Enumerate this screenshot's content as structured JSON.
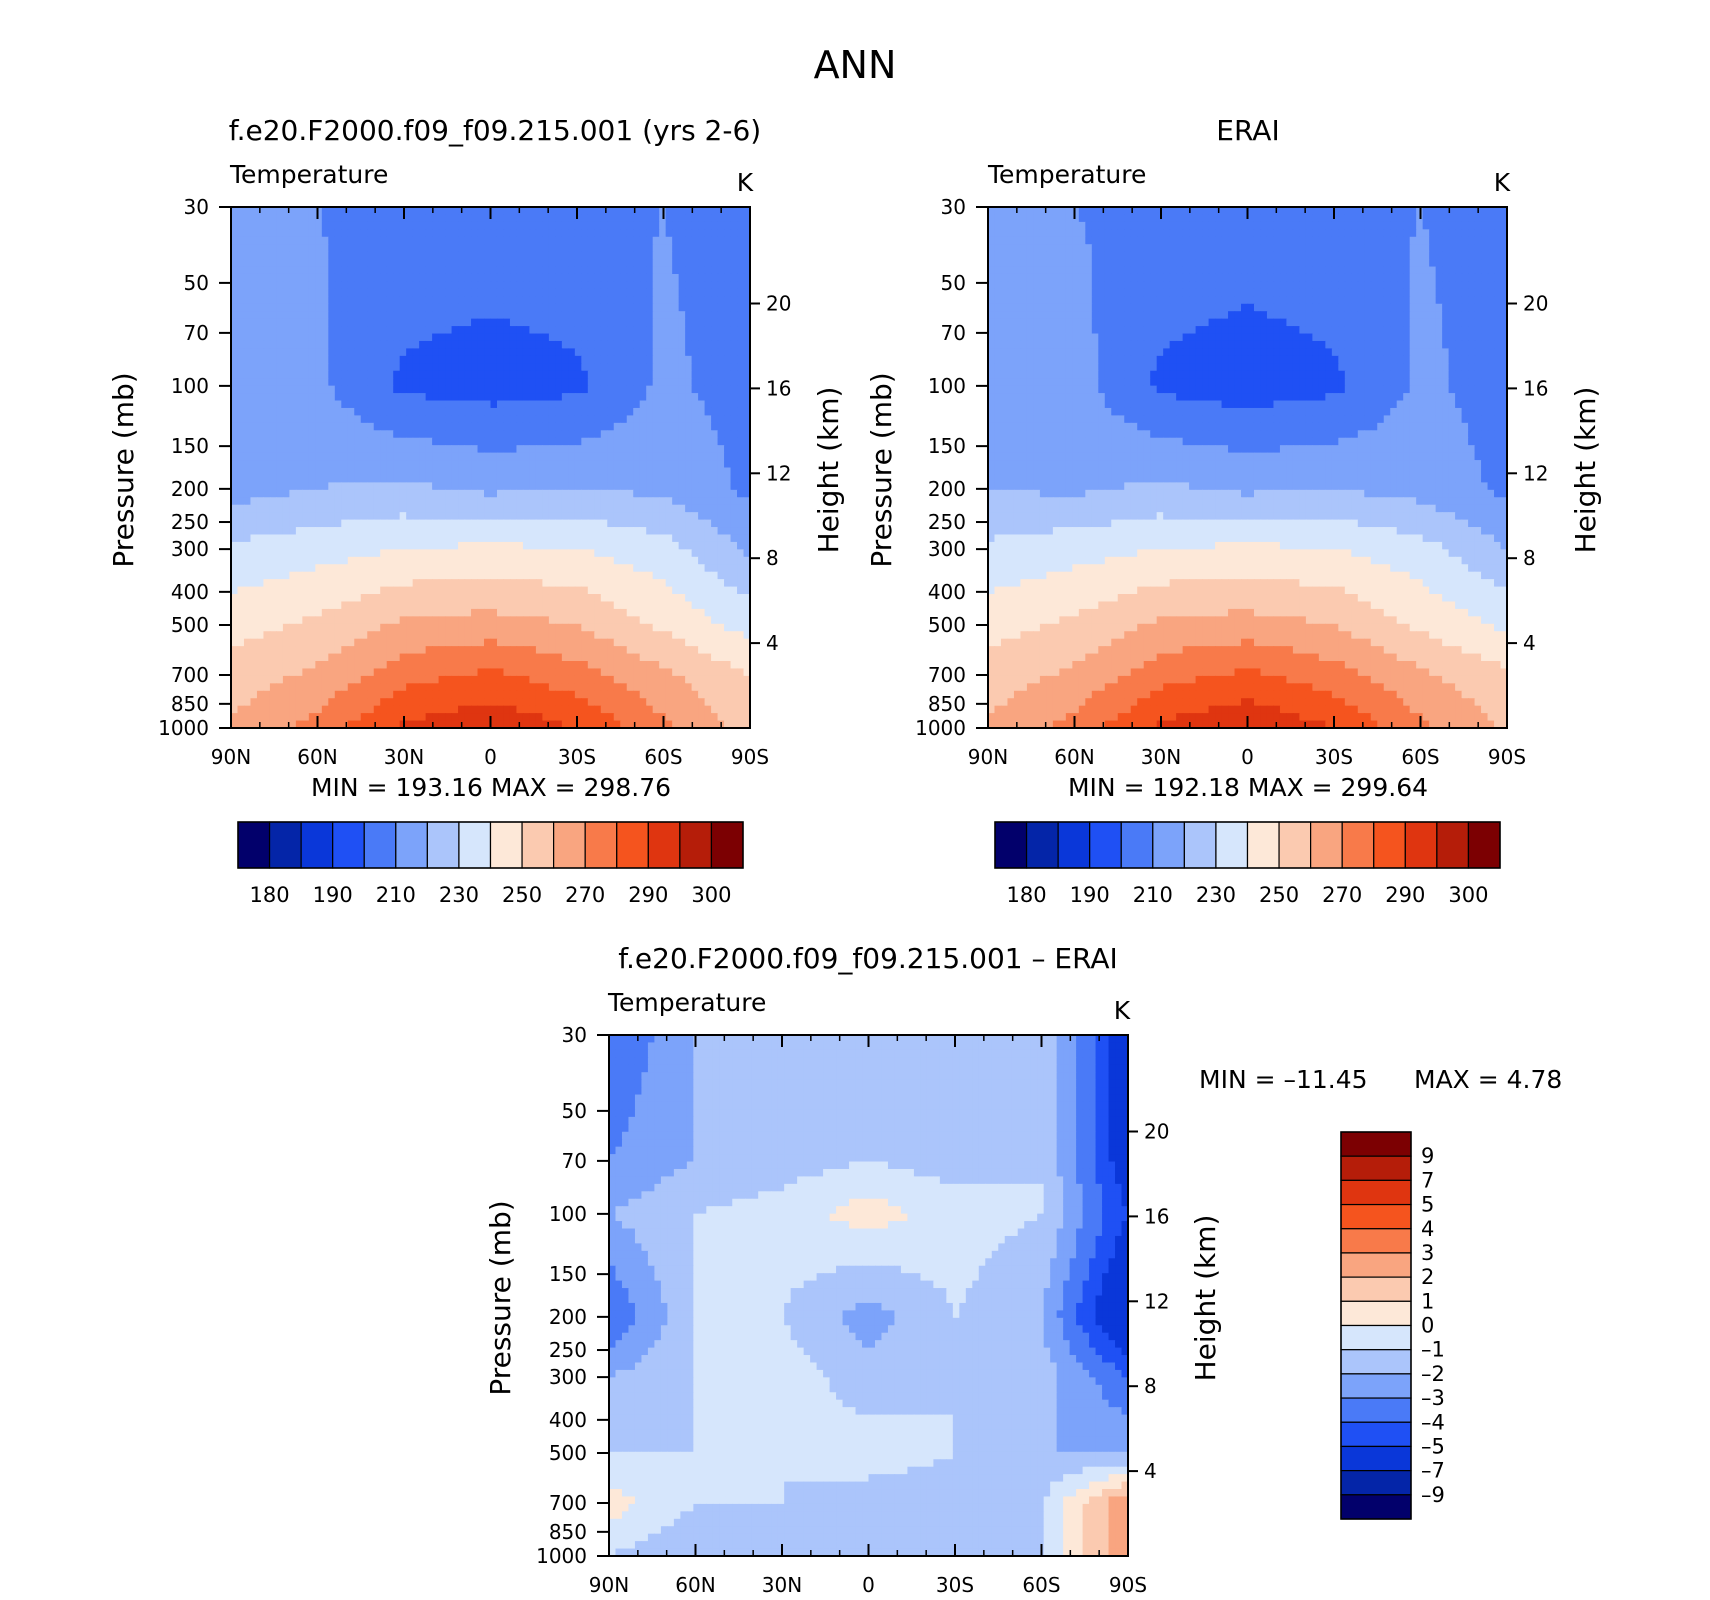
{
  "figure": {
    "title": "ANN",
    "colors": {
      "abs_scale": [
        "#02006b",
        "#0425a8",
        "#0a37d9",
        "#1f50f4",
        "#4a7af7",
        "#7ca3fa",
        "#abc5fb",
        "#d6e6fc",
        "#fde8d8",
        "#fbcab0",
        "#f9a580",
        "#f87a4a",
        "#f5541e",
        "#df3510",
        "#b51d09",
        "#7c0002"
      ],
      "diff_scale": [
        "#02006b",
        "#0425a8",
        "#0a37d9",
        "#1f50f4",
        "#4a7af7",
        "#7ca3fa",
        "#abc5fb",
        "#d6e6fc",
        "#fde8d8",
        "#fbcab0",
        "#f9a580",
        "#f87a4a",
        "#f5541e",
        "#df3510",
        "#b51d09",
        "#7c0002"
      ]
    }
  },
  "chart_data": [
    {
      "type": "heatmap",
      "panel": "model",
      "title": "f.e20.F2000.f09_f09.215.001 (yrs 2-6)",
      "left_label": "Temperature",
      "unit": "K",
      "ylabel": "Pressure (mb)",
      "y2label": "Height (km)",
      "x_ticks": [
        "90N",
        "60N",
        "30N",
        "0",
        "30S",
        "60S",
        "90S"
      ],
      "y_ticks": [
        30,
        50,
        70,
        100,
        150,
        200,
        250,
        300,
        400,
        500,
        700,
        850,
        1000
      ],
      "y2_ticks": [
        20,
        16,
        12,
        8,
        4
      ],
      "min": "193.16",
      "max": "298.76",
      "stats": "MIN = 193.16 MAX = 298.76",
      "colorbar_levels": [
        180,
        185,
        190,
        200,
        210,
        220,
        230,
        240,
        250,
        260,
        270,
        280,
        290,
        300,
        310
      ],
      "colorbar_labels": [
        "180",
        "190",
        "210",
        "230",
        "250",
        "270",
        "290",
        "300"
      ],
      "field": {
        "lat": [
          90,
          60,
          30,
          0,
          -30,
          -60,
          -90
        ],
        "pressure": [
          30,
          100,
          200,
          300,
          500,
          700,
          1000
        ],
        "values": [
          [
            212,
            210,
            208,
            206,
            208,
            210,
            205
          ],
          [
            214,
            212,
            198,
            196,
            198,
            212,
            206
          ],
          [
            216,
            220,
            222,
            218,
            220,
            218,
            208
          ],
          [
            232,
            236,
            240,
            242,
            240,
            234,
            218
          ],
          [
            246,
            252,
            262,
            264,
            260,
            248,
            236
          ],
          [
            254,
            262,
            276,
            282,
            274,
            262,
            250
          ],
          [
            262,
            274,
            292,
            298,
            290,
            272,
            256
          ]
        ]
      }
    },
    {
      "type": "heatmap",
      "panel": "obs",
      "title": "ERAI",
      "left_label": "Temperature",
      "unit": "K",
      "ylabel": "Pressure (mb)",
      "y2label": "Height (km)",
      "x_ticks": [
        "90N",
        "60N",
        "30N",
        "0",
        "30S",
        "60S",
        "90S"
      ],
      "y_ticks": [
        30,
        50,
        70,
        100,
        150,
        200,
        250,
        300,
        400,
        500,
        700,
        850,
        1000
      ],
      "y2_ticks": [
        20,
        16,
        12,
        8,
        4
      ],
      "min": "192.18",
      "max": "299.64",
      "stats": "MIN = 192.18 MAX = 299.64",
      "colorbar_levels": [
        180,
        185,
        190,
        200,
        210,
        220,
        230,
        240,
        250,
        260,
        270,
        280,
        290,
        300,
        310
      ],
      "colorbar_labels": [
        "180",
        "190",
        "210",
        "230",
        "250",
        "270",
        "290",
        "300"
      ],
      "field": {
        "lat": [
          90,
          60,
          30,
          0,
          -30,
          -60,
          -90
        ],
        "pressure": [
          30,
          100,
          200,
          300,
          500,
          700,
          1000
        ],
        "values": [
          [
            212,
            210,
            208,
            206,
            208,
            210,
            206
          ],
          [
            216,
            214,
            198,
            195,
            198,
            212,
            206
          ],
          [
            220,
            218,
            222,
            218,
            220,
            216,
            208
          ],
          [
            232,
            236,
            240,
            242,
            240,
            234,
            220
          ],
          [
            246,
            252,
            262,
            264,
            260,
            248,
            238
          ],
          [
            254,
            262,
            276,
            282,
            274,
            262,
            252
          ],
          [
            262,
            274,
            292,
            299,
            290,
            272,
            258
          ]
        ]
      }
    },
    {
      "type": "heatmap",
      "panel": "difference",
      "title": "f.e20.F2000.f09_f09.215.001 – ERAI",
      "left_label": "Temperature",
      "unit": "K",
      "ylabel": "Pressure (mb)",
      "y2label": "Height (km)",
      "x_ticks": [
        "90N",
        "60N",
        "30N",
        "0",
        "30S",
        "60S",
        "90S"
      ],
      "y_ticks": [
        30,
        50,
        70,
        100,
        150,
        200,
        250,
        300,
        400,
        500,
        700,
        850,
        1000
      ],
      "y2_ticks": [
        20,
        16,
        12,
        8,
        4
      ],
      "min": "–11.45",
      "max": "4.78",
      "stats_min_label": "MIN = –11.45",
      "stats_max_label": "MAX = 4.78",
      "colorbar_levels": [
        -9,
        -7,
        -5,
        -4,
        -3,
        -2,
        -1,
        0,
        1,
        2,
        3,
        4,
        5,
        7,
        9
      ],
      "colorbar_labels": [
        "9",
        "7",
        "5",
        "4",
        "3",
        "2",
        "1",
        "0",
        "–1",
        "–2",
        "–3",
        "–4",
        "–5",
        "–7",
        "–9"
      ],
      "field": {
        "lat": [
          90,
          60,
          30,
          0,
          -30,
          -60,
          -90
        ],
        "pressure": [
          30,
          70,
          100,
          200,
          300,
          500,
          700,
          1000
        ],
        "values": [
          [
            -4,
            -2,
            -2,
            -1.5,
            -2,
            -1,
            -6
          ],
          [
            -3,
            -2,
            -1.5,
            -1,
            -1.5,
            -1,
            -6
          ],
          [
            -2,
            -1,
            -0.5,
            0.5,
            -0.5,
            -1,
            -5
          ],
          [
            -4,
            -1,
            -1,
            -2.5,
            -1,
            -2,
            -7
          ],
          [
            -2,
            -1,
            -0.5,
            -1.5,
            -1,
            -1.5,
            -4
          ],
          [
            -1,
            -1,
            -1,
            -0.5,
            -1,
            -2,
            -2
          ],
          [
            0.5,
            -1,
            -1,
            -1.5,
            -1.5,
            -1,
            3
          ],
          [
            -1,
            -2,
            -1.5,
            -1.5,
            -1.5,
            -1,
            3
          ]
        ]
      }
    }
  ]
}
